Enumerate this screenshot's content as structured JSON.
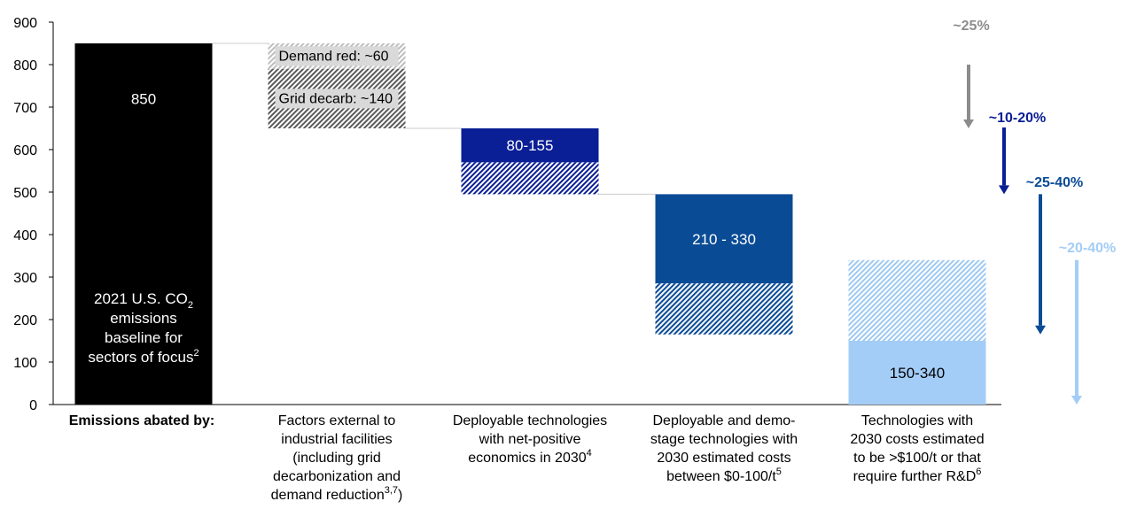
{
  "chart_data": {
    "type": "bar",
    "title": "",
    "xlabel": "",
    "ylabel": "",
    "ylim": [
      0,
      900
    ],
    "y_ticks": [
      "0",
      "100",
      "200",
      "300",
      "400",
      "500",
      "600",
      "700",
      "800",
      "900"
    ],
    "row_label": "Emissions abated by:",
    "categories": [
      {
        "label_lines": [
          "",
          "",
          "",
          "",
          ""
        ],
        "segments": [
          {
            "from": 0,
            "to": 850,
            "style": "solid",
            "color": "#000000"
          }
        ],
        "value_label": "850",
        "label_color": "#ffffff",
        "inner_text_lines": [
          "2021 U.S. CO",
          "emissions",
          "baseline for",
          "sectors of focus"
        ],
        "inner_text_sub": "2",
        "inner_text_sup": "2"
      },
      {
        "label_lines": [
          "Factors external to",
          "industrial facilities",
          "(including grid",
          "decarbonization and",
          "demand reduction"
        ],
        "label_sup": "3,7",
        "label_tail": ")",
        "segments": [
          {
            "from": 790,
            "to": 850,
            "style": "hatch",
            "color": "#bdbdbd",
            "text": "Demand red: ~60"
          },
          {
            "from": 650,
            "to": 790,
            "style": "hatch",
            "color": "#5a5a5a",
            "text": "Grid decarb: ~140"
          }
        ]
      },
      {
        "label_lines": [
          "Deployable technologies",
          "with net-positive",
          "economics in 2030"
        ],
        "label_sup": "4",
        "segments": [
          {
            "from": 570,
            "to": 650,
            "style": "solid",
            "color": "#0a1e96"
          },
          {
            "from": 495,
            "to": 570,
            "style": "hatch",
            "color": "#0a1e96"
          }
        ],
        "value_label": "80-155",
        "label_color": "#ffffff"
      },
      {
        "label_lines": [
          "Deployable and demo-",
          "stage technologies with",
          "2030 estimated costs",
          "between $0-100/t"
        ],
        "label_sup": "5",
        "segments": [
          {
            "from": 285,
            "to": 495,
            "style": "solid",
            "color": "#0a4b96"
          },
          {
            "from": 165,
            "to": 285,
            "style": "hatch",
            "color": "#0a4b96"
          }
        ],
        "value_label": "210 - 330",
        "label_color": "#ffffff"
      },
      {
        "label_lines": [
          "Technologies with",
          "2030 costs estimated",
          "to be >$100/t or that",
          "require further R&D"
        ],
        "label_sup": "6",
        "segments": [
          {
            "from": 340,
            "to": 150,
            "style": "hatch",
            "color": "#9ec9f2"
          },
          {
            "from": 150,
            "to": 0,
            "style": "solid",
            "color": "#a3cdf7"
          }
        ],
        "value_label": "150-340",
        "label_color": "#000000"
      }
    ],
    "reductions": [
      {
        "label": "~25%",
        "from": 850,
        "to": 650,
        "color": "#8c8c8c"
      },
      {
        "label": "~10-20%",
        "from": 650,
        "to": 495,
        "color": "#0a1e96"
      },
      {
        "label": "~25-40%",
        "from": 495,
        "to": 165,
        "color": "#0a4b96"
      },
      {
        "label": "~20-40%",
        "from": 340,
        "to": 0,
        "color": "#a3cdf7"
      }
    ]
  }
}
